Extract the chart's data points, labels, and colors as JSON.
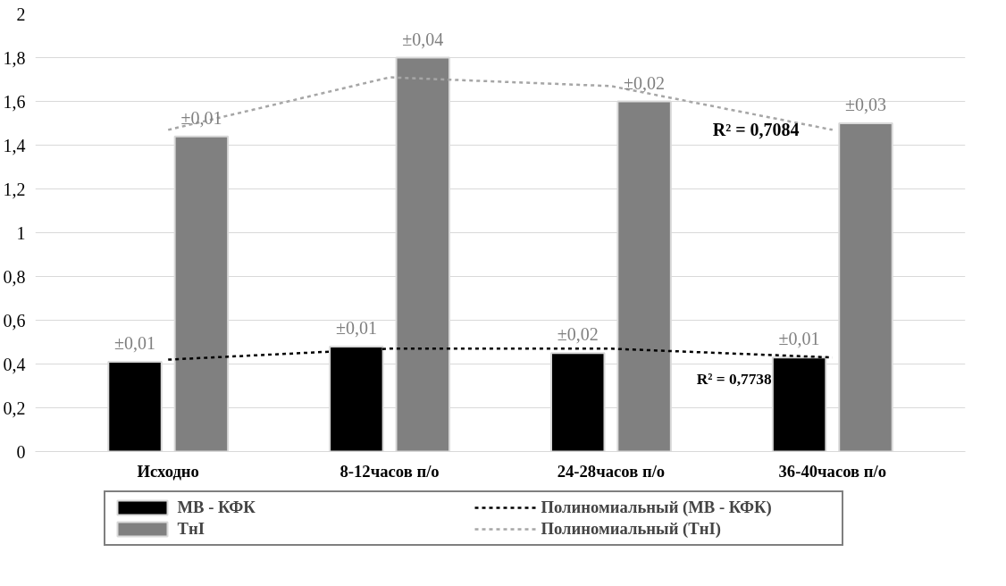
{
  "chart_data": {
    "type": "bar",
    "categories": [
      "Исходно",
      "8-12часов п/о",
      "24-28часов п/о",
      "36-40часов п/о"
    ],
    "series": [
      {
        "name": "МВ - КФК",
        "color": "#000000",
        "values": [
          0.41,
          0.48,
          0.45,
          0.43
        ]
      },
      {
        "name": "ТнI",
        "color": "#808080",
        "values": [
          1.44,
          1.8,
          1.6,
          1.5
        ]
      },
      {
        "name": "Полиномиальный (МВ - КФК)",
        "type": "line",
        "line_style": "dashed",
        "color": "#000000",
        "values": [
          0.42,
          0.47,
          0.47,
          0.43
        ]
      },
      {
        "name": "Полиномиальный (ТнI)",
        "type": "line",
        "line_style": "dashed",
        "color": "#a6a6a6",
        "values": [
          1.47,
          1.71,
          1.67,
          1.47
        ]
      }
    ],
    "annotations": [
      {
        "text": "±0,01",
        "x": "Исходно",
        "y": 0.41
      },
      {
        "text": "±0,01",
        "x": "8-12часов п/о",
        "y": 0.48
      },
      {
        "text": "±0,02",
        "x": "24-28часов п/о",
        "y": 0.45
      },
      {
        "text": "±0,01",
        "x": "36-40часов п/о",
        "y": 0.43
      },
      "±0,01",
      "±0,04",
      "±0,02",
      "±0,03",
      {
        "text": "R² = 0,7084",
        "x": "36-40часов п/о",
        "y": 1.47
      },
      "R² = 0,7738"
    ],
    "ylim": [
      0,
      2
    ],
    "yticks": [
      0,
      {
        "value": 0.2,
        "label": "0,2"
      },
      {
        "value": 0.4,
        "label": "0,4"
      },
      {
        "value": 0.6,
        "label": "0,6"
      },
      {
        "value": 0.8,
        "label": "0,8"
      },
      1,
      {
        "value": 1.2,
        "label": "1,2"
      },
      {
        "value": 1.4,
        "label": "1,4"
      },
      {
        "value": 1.6,
        "label": "1,6"
      },
      {
        "value": 1.8,
        "label": "1,8"
      },
      2
    ],
    "grid": "y",
    "legend": "bottom"
  }
}
